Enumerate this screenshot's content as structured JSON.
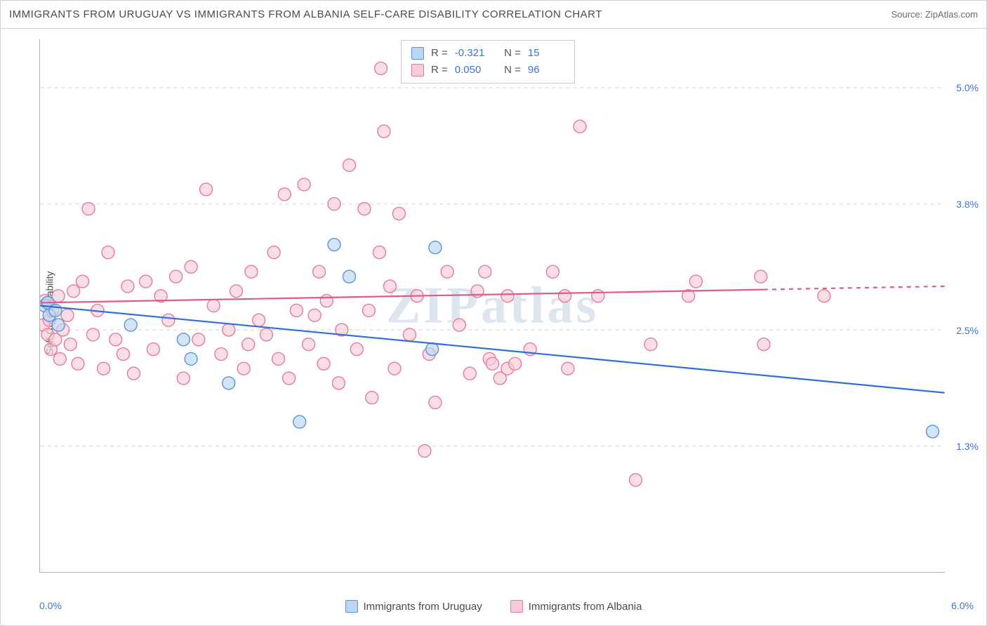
{
  "title": "IMMIGRANTS FROM URUGUAY VS IMMIGRANTS FROM ALBANIA SELF-CARE DISABILITY CORRELATION CHART",
  "source": "Source: ZipAtlas.com",
  "watermark": "ZIPatlas",
  "ylabel": "Self-Care Disability",
  "chart": {
    "type": "scatter-with-regression",
    "background_color": "#ffffff",
    "grid_color": "#e0e0e0",
    "axis_color": "#b0b0b0",
    "xlim": [
      0.0,
      6.0
    ],
    "ylim": [
      0.0,
      5.5
    ],
    "x_min_label": "0.0%",
    "x_max_label": "6.0%",
    "y_ticks": [
      {
        "v": 1.3,
        "label": "1.3%"
      },
      {
        "v": 2.5,
        "label": "2.5%"
      },
      {
        "v": 3.8,
        "label": "3.8%"
      },
      {
        "v": 5.0,
        "label": "5.0%"
      }
    ],
    "x_tick_positions": [
      0.5,
      1.5,
      2.5,
      3.5,
      4.5,
      5.5
    ],
    "tick_label_color": "#3a74d8",
    "marker_radius": 9,
    "marker_stroke_width": 1.4,
    "line_width": 2.2
  },
  "series": [
    {
      "name": "Immigrants from Uruguay",
      "fill": "#bcd5f2",
      "stroke": "#5a93dd",
      "line_color": "#2d6fd6",
      "R": "-0.321",
      "N": "15",
      "trend": {
        "x1": 0.0,
        "y1": 2.75,
        "x2": 6.0,
        "y2": 1.85,
        "dash_after_x": 6.0
      },
      "points": [
        [
          0.03,
          2.75
        ],
        [
          0.06,
          2.65
        ],
        [
          0.05,
          2.78
        ],
        [
          0.1,
          2.7
        ],
        [
          0.12,
          2.55
        ],
        [
          0.6,
          2.55
        ],
        [
          0.95,
          2.4
        ],
        [
          1.0,
          2.2
        ],
        [
          1.25,
          1.95
        ],
        [
          1.72,
          1.55
        ],
        [
          1.95,
          3.38
        ],
        [
          2.05,
          3.05
        ],
        [
          2.62,
          3.35
        ],
        [
          2.6,
          2.3
        ],
        [
          5.92,
          1.45
        ]
      ]
    },
    {
      "name": "Immigrants from Albania",
      "fill": "#f7cdd8",
      "stroke": "#e77a9a",
      "line_color": "#e05b85",
      "R": "0.050",
      "N": "96",
      "trend": {
        "x1": 0.0,
        "y1": 2.78,
        "x2": 6.0,
        "y2": 2.95,
        "dash_after_x": 4.8
      },
      "points": [
        [
          0.02,
          2.55
        ],
        [
          0.03,
          2.8
        ],
        [
          0.05,
          2.45
        ],
        [
          0.06,
          2.6
        ],
        [
          0.07,
          2.3
        ],
        [
          0.08,
          2.7
        ],
        [
          0.1,
          2.4
        ],
        [
          0.12,
          2.85
        ],
        [
          0.13,
          2.2
        ],
        [
          0.15,
          2.5
        ],
        [
          0.18,
          2.65
        ],
        [
          0.2,
          2.35
        ],
        [
          0.22,
          2.9
        ],
        [
          0.25,
          2.15
        ],
        [
          0.28,
          3.0
        ],
        [
          0.32,
          3.75
        ],
        [
          0.35,
          2.45
        ],
        [
          0.38,
          2.7
        ],
        [
          0.42,
          2.1
        ],
        [
          0.45,
          3.3
        ],
        [
          0.5,
          2.4
        ],
        [
          0.55,
          2.25
        ],
        [
          0.58,
          2.95
        ],
        [
          0.62,
          2.05
        ],
        [
          0.7,
          3.0
        ],
        [
          0.75,
          2.3
        ],
        [
          0.8,
          2.85
        ],
        [
          0.85,
          2.6
        ],
        [
          0.9,
          3.05
        ],
        [
          0.95,
          2.0
        ],
        [
          1.0,
          3.15
        ],
        [
          1.05,
          2.4
        ],
        [
          1.1,
          3.95
        ],
        [
          1.15,
          2.75
        ],
        [
          1.2,
          2.25
        ],
        [
          1.25,
          2.5
        ],
        [
          1.3,
          2.9
        ],
        [
          1.35,
          2.1
        ],
        [
          1.38,
          2.35
        ],
        [
          1.4,
          3.1
        ],
        [
          1.45,
          2.6
        ],
        [
          1.5,
          2.45
        ],
        [
          1.55,
          3.3
        ],
        [
          1.58,
          2.2
        ],
        [
          1.62,
          3.9
        ],
        [
          1.65,
          2.0
        ],
        [
          1.7,
          2.7
        ],
        [
          1.75,
          4.0
        ],
        [
          1.78,
          2.35
        ],
        [
          1.82,
          2.65
        ],
        [
          1.85,
          3.1
        ],
        [
          1.88,
          2.15
        ],
        [
          1.9,
          2.8
        ],
        [
          1.95,
          3.8
        ],
        [
          1.98,
          1.95
        ],
        [
          2.0,
          2.5
        ],
        [
          2.05,
          4.2
        ],
        [
          2.1,
          2.3
        ],
        [
          2.15,
          3.75
        ],
        [
          2.18,
          2.7
        ],
        [
          2.2,
          1.8
        ],
        [
          2.25,
          3.3
        ],
        [
          2.26,
          5.2
        ],
        [
          2.28,
          4.55
        ],
        [
          2.32,
          2.95
        ],
        [
          2.35,
          2.1
        ],
        [
          2.38,
          3.7
        ],
        [
          2.45,
          2.45
        ],
        [
          2.5,
          2.85
        ],
        [
          2.55,
          1.25
        ],
        [
          2.58,
          2.25
        ],
        [
          2.62,
          1.75
        ],
        [
          2.7,
          3.1
        ],
        [
          2.78,
          2.55
        ],
        [
          2.85,
          2.05
        ],
        [
          2.9,
          2.9
        ],
        [
          2.98,
          2.2
        ],
        [
          2.95,
          3.1
        ],
        [
          3.0,
          2.15
        ],
        [
          3.05,
          2.0
        ],
        [
          3.1,
          2.85
        ],
        [
          3.1,
          2.1
        ],
        [
          3.15,
          2.15
        ],
        [
          3.25,
          2.3
        ],
        [
          3.4,
          3.1
        ],
        [
          3.48,
          2.85
        ],
        [
          3.5,
          2.1
        ],
        [
          3.58,
          4.6
        ],
        [
          3.7,
          2.85
        ],
        [
          3.95,
          0.95
        ],
        [
          4.05,
          2.35
        ],
        [
          4.3,
          2.85
        ],
        [
          4.35,
          3.0
        ],
        [
          4.78,
          3.05
        ],
        [
          4.8,
          2.35
        ],
        [
          5.2,
          2.85
        ]
      ]
    }
  ],
  "legend": {
    "position": "bottom-center",
    "stats_position": "top-center"
  }
}
